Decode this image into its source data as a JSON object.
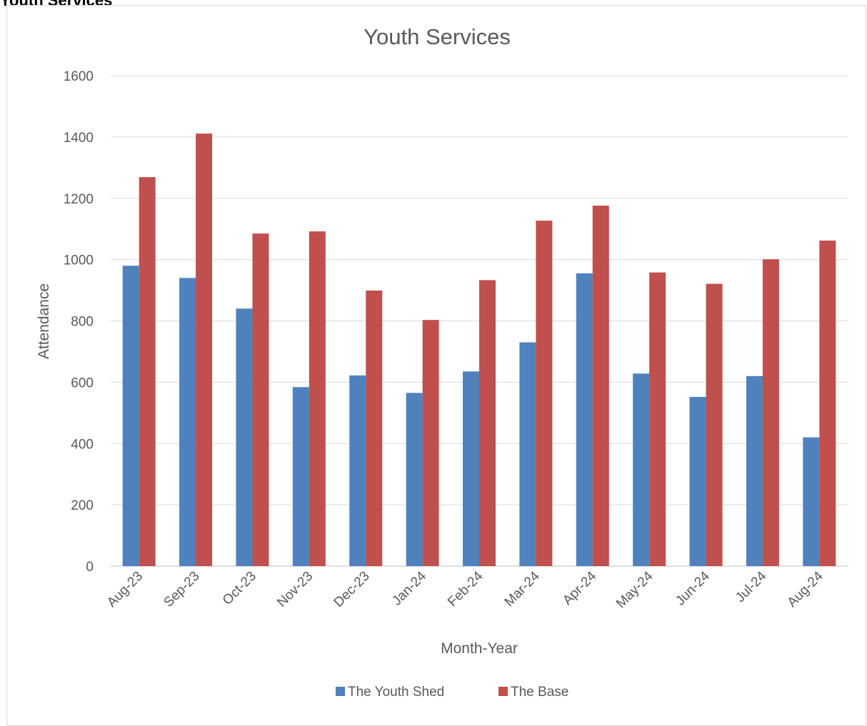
{
  "page_heading": "Youth Services",
  "chart_data": {
    "type": "bar",
    "title": "Youth Services",
    "xlabel": "Month-Year",
    "ylabel": "Attendance",
    "ylim": [
      0,
      1600
    ],
    "yticks": [
      0,
      200,
      400,
      600,
      800,
      1000,
      1200,
      1400,
      1600
    ],
    "categories": [
      "Aug-23",
      "Sep-23",
      "Oct-23",
      "Nov-23",
      "Dec-23",
      "Jan-24",
      "Feb-24",
      "Mar-24",
      "Apr-24",
      "May-24",
      "Jun-24",
      "Jul-24",
      "Aug-24"
    ],
    "series": [
      {
        "name": "The Youth Shed",
        "color": "#4f81bd",
        "values": [
          980,
          940,
          840,
          584,
          622,
          565,
          635,
          730,
          955,
          628,
          552,
          620,
          420
        ]
      },
      {
        "name": "The Base",
        "color": "#c0504d",
        "values": [
          1269,
          1411,
          1085,
          1092,
          899,
          803,
          933,
          1127,
          1176,
          958,
          921,
          1001,
          1062
        ]
      }
    ],
    "grid": true,
    "legend": "bottom"
  }
}
